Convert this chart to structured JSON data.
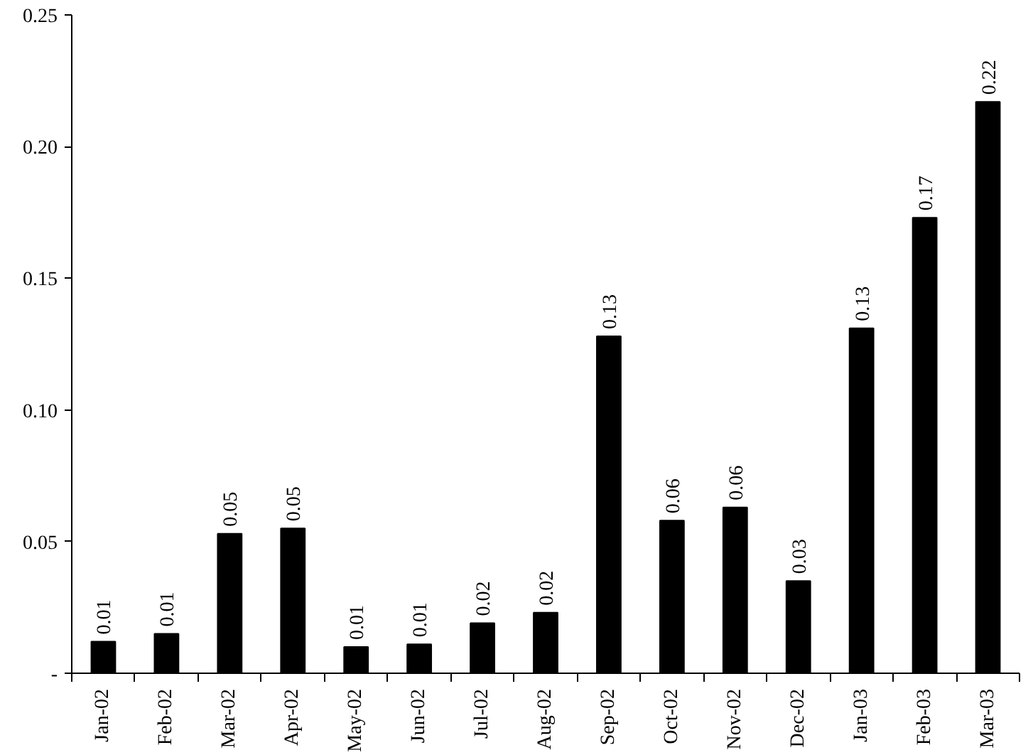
{
  "chart_data": {
    "type": "bar",
    "categories": [
      "Jan-02",
      "Feb-02",
      "Mar-02",
      "Apr-02",
      "May-02",
      "Jun-02",
      "Jul-02",
      "Aug-02",
      "Sep-02",
      "Oct-02",
      "Nov-02",
      "Dec-02",
      "Jan-03",
      "Feb-03",
      "Mar-03"
    ],
    "values": [
      0.012,
      0.015,
      0.053,
      0.055,
      0.01,
      0.011,
      0.019,
      0.023,
      0.128,
      0.058,
      0.063,
      0.035,
      0.131,
      0.173,
      0.217
    ],
    "value_labels": [
      "0.01",
      "0.01",
      "0.05",
      "0.05",
      "0.01",
      "0.01",
      "0.02",
      "0.02",
      "0.13",
      "0.06",
      "0.06",
      "0.03",
      "0.13",
      "0.17",
      "0.22"
    ],
    "color": "#000000",
    "ylim": [
      0,
      0.25
    ],
    "yticks": [
      {
        "value": 0,
        "label": "-"
      },
      0.05,
      {
        "value": 0.1,
        "label": "0.10"
      },
      0.15,
      {
        "value": 0.2,
        "label": "0.20"
      },
      0.25
    ],
    "grid": false
  }
}
